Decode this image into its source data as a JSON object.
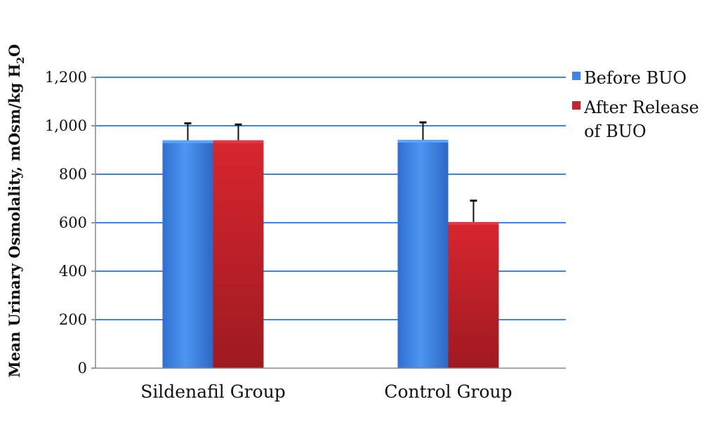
{
  "chart_data": {
    "type": "bar",
    "categories": [
      "Sildenafil Group",
      "Control Group"
    ],
    "series": [
      {
        "name": "Before BUO",
        "values": [
          940,
          942
        ],
        "error": [
          70,
          72
        ],
        "color": "#3d86e8"
      },
      {
        "name": "After Release of BUO",
        "name_lines": [
          "After Release",
          "of BUO"
        ],
        "values": [
          940,
          603
        ],
        "error": [
          65,
          88
        ],
        "color": "#c8222b"
      }
    ],
    "ylabel": "Mean Urinary Osmolality, mOsm/kg H2O",
    "ylabel_parts": {
      "main": "Mean Urinary Osmolality, mOsm/kg H",
      "sub": "2",
      "tail": "O"
    },
    "ylim": [
      0,
      1200
    ],
    "yticks": [
      0,
      200,
      400,
      600,
      800,
      1000,
      1200
    ],
    "ytick_labels": [
      "0",
      "200",
      "400",
      "600",
      "800",
      "1,000",
      "1,200"
    ],
    "grid": true,
    "gridline_color": "#3d86e8",
    "legend_position": "right"
  }
}
